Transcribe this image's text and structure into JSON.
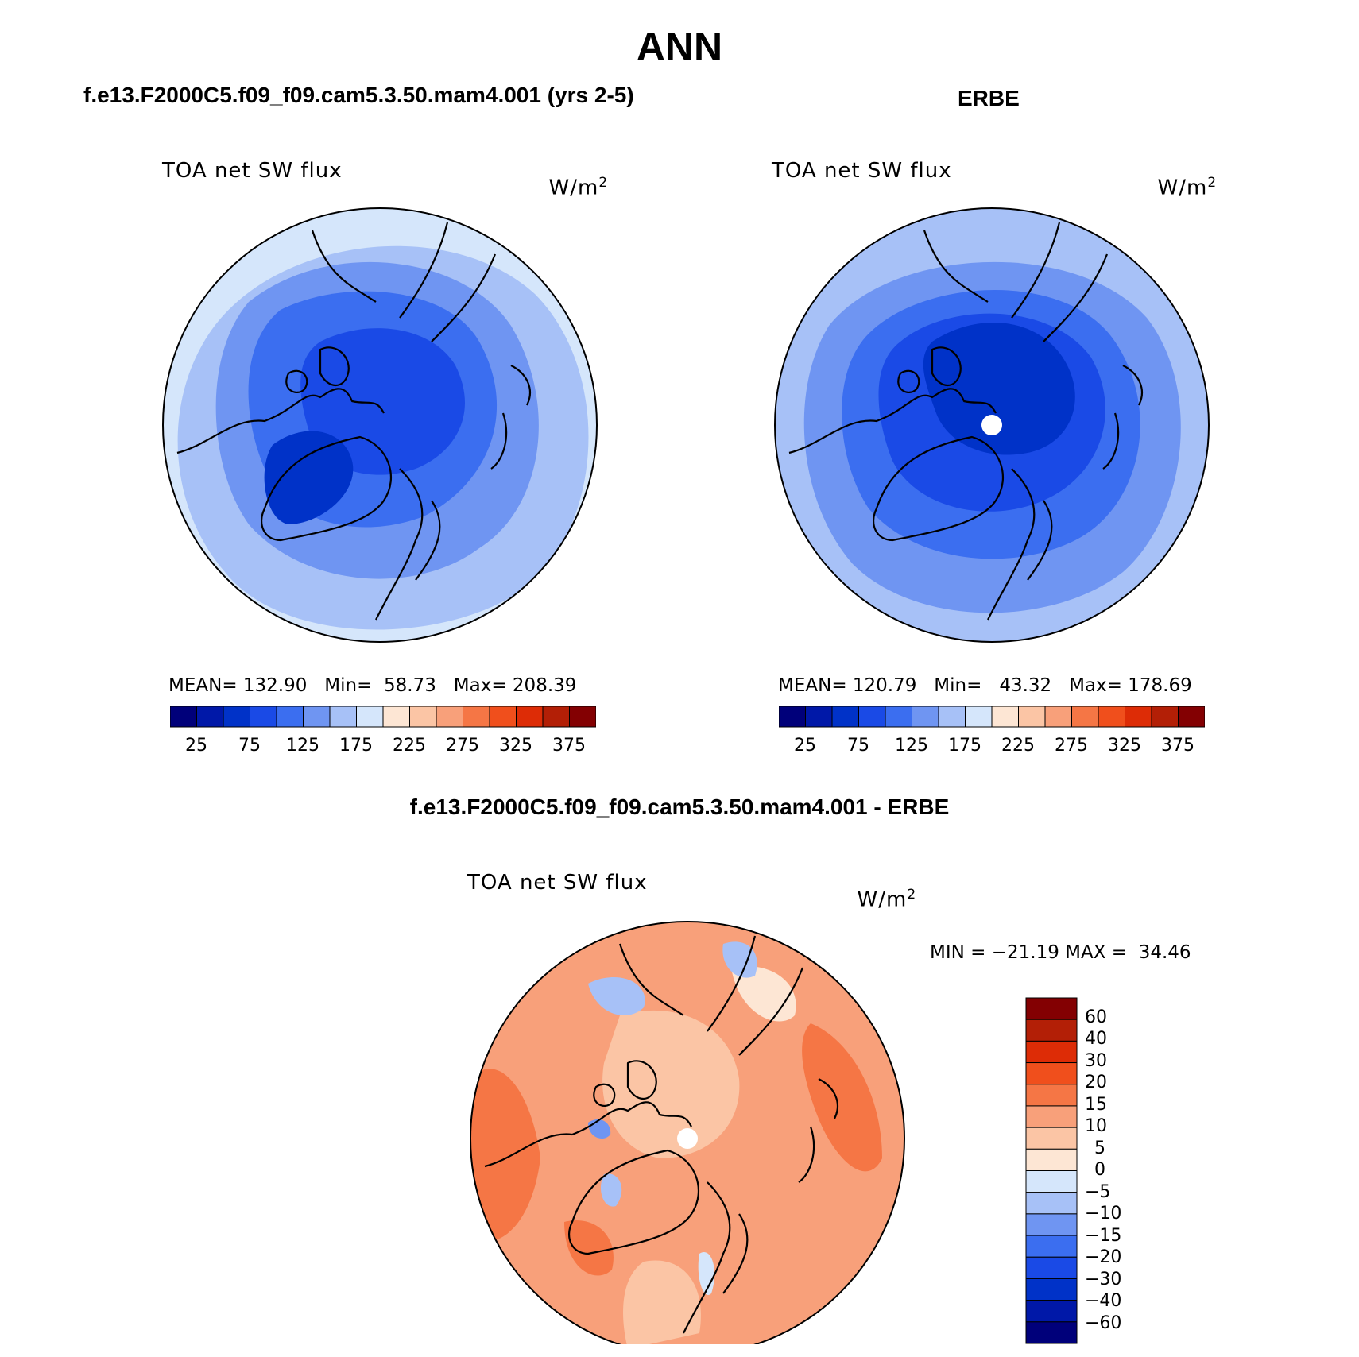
{
  "title": "ANN",
  "panels": [
    {
      "title": "f.e13.F2000C5.f09_f09.cam5.3.50.mam4.001 (yrs 2-5)",
      "label": "TOA net SW flux",
      "units": "W/m",
      "units_sup": "2",
      "stats": "MEAN= 132.90   Min=  58.73   Max= 208.39",
      "colorbar_ticks": [
        "25",
        "75",
        "125",
        "175",
        "225",
        "275",
        "325",
        "375"
      ]
    },
    {
      "title": "ERBE",
      "label": "TOA net SW flux",
      "units": "W/m",
      "units_sup": "2",
      "stats": "MEAN= 120.79   Min=   43.32   Max= 178.69",
      "colorbar_ticks": [
        "25",
        "75",
        "125",
        "175",
        "225",
        "275",
        "325",
        "375"
      ]
    },
    {
      "title": "f.e13.F2000C5.f09_f09.cam5.3.50.mam4.001 - ERBE",
      "label": "TOA net SW flux",
      "units": "W/m",
      "units_sup": "2",
      "stats": "MIN = −21.19 MAX =  34.46",
      "colorbar_ticks": [
        "60",
        "40",
        "30",
        "20",
        "15",
        "10",
        "5",
        "0",
        "−5",
        "−10",
        "−15",
        "−20",
        "−30",
        "−40",
        "−60"
      ]
    }
  ],
  "colorbar_colors": [
    "#00007a",
    "#0018a8",
    "#0032c8",
    "#1a4ae6",
    "#3b6ef0",
    "#6f95f2",
    "#a7c1f7",
    "#d5e6fb",
    "#fde6d4",
    "#fbc5a5",
    "#f8a07a",
    "#f57645",
    "#f04f1c",
    "#dd2c06",
    "#b31f06",
    "#830002"
  ],
  "diff_colorbar_colors": [
    "#830002",
    "#b31f06",
    "#dd2c06",
    "#f04f1c",
    "#f57645",
    "#f8a07a",
    "#fbc5a5",
    "#fde6d4",
    "#d5e6fb",
    "#a7c1f7",
    "#6f95f2",
    "#3b6ef0",
    "#1a4ae6",
    "#0032c8",
    "#0018a8",
    "#00007a"
  ]
}
